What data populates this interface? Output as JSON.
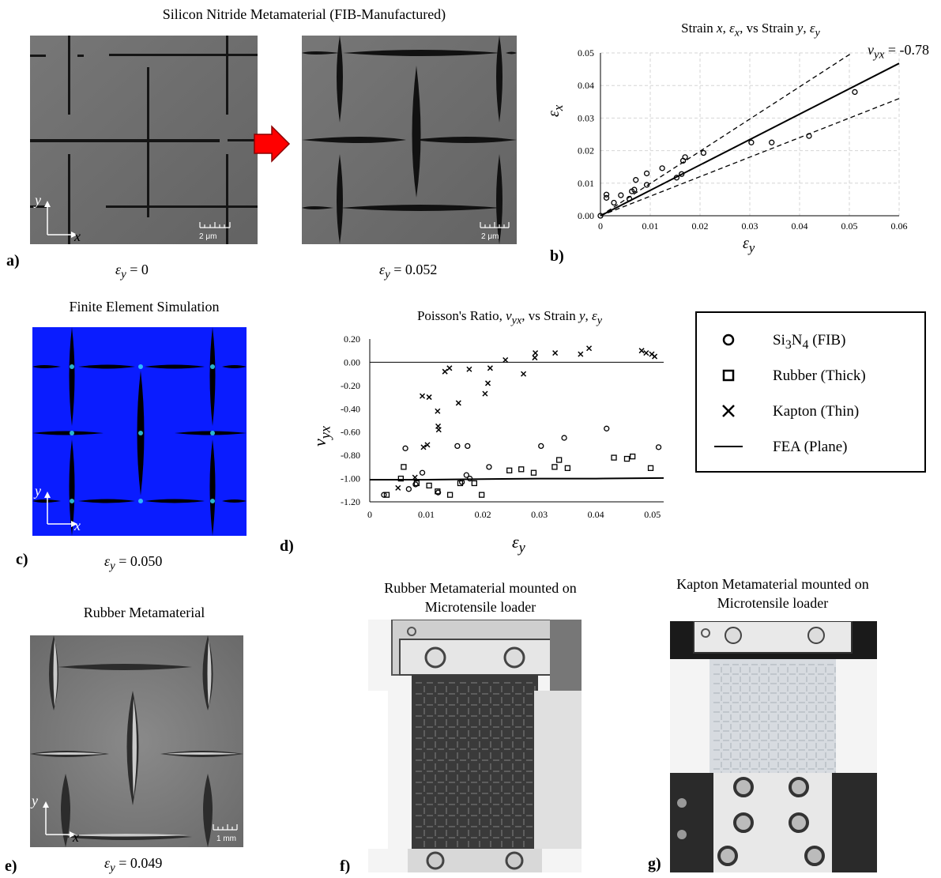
{
  "panel_a": {
    "title": "Silicon Nitride Metamaterial (FIB-Manufactured)",
    "label": "a)",
    "left_caption_var": "ε",
    "left_caption_sub": "y",
    "left_caption_val": " = 0",
    "right_caption_var": "ε",
    "right_caption_sub": "y",
    "right_caption_val": " = 0.052",
    "scale_left": "2 μm",
    "scale_right": "2 μm",
    "axis_y": "y",
    "axis_x": "x",
    "colors": {
      "sem_gray": "#6f6f6f",
      "arrow_red": "#ff0000"
    }
  },
  "panel_b": {
    "label": "b)",
    "title_prefix": "Strain ",
    "title_x": "x",
    "title_mid": ", ",
    "title_ex": "ε",
    "title_ex_sub": "x",
    "title_vs": ", vs Strain ",
    "title_y": "y",
    "title_comma": ", ",
    "title_ey": "ε",
    "title_ey_sub": "y",
    "annot_nu": "ν",
    "annot_sub": "yx",
    "annot_val": " = -0.78",
    "ylabel": "ε",
    "ylabel_sub": "x",
    "xlabel": "ε",
    "xlabel_sub": "y"
  },
  "panel_c": {
    "title": "Finite Element Simulation",
    "label": "c)",
    "caption_var": "ε",
    "caption_sub": "y",
    "caption_val": " = 0.050",
    "axis_y": "y",
    "axis_x": "x",
    "colors": {
      "field_blue": "#0a1cff",
      "void_black": "#000000"
    }
  },
  "panel_d": {
    "label": "d)",
    "title_prefix": "Poisson's Ratio, ",
    "title_nu": "ν",
    "title_nu_sub": "yx",
    "title_vs": ", vs Strain ",
    "title_y": "y",
    "title_comma": ", ",
    "title_ey": "ε",
    "title_ey_sub": "y",
    "ylabel": "ν",
    "ylabel_sub": "yx",
    "xlabel": "ε",
    "xlabel_sub": "y"
  },
  "legend": {
    "items": [
      {
        "symbol": "circle",
        "label_main": "Si",
        "label_sub1": "3",
        "label_mid": "N",
        "label_sub2": "4",
        "label_rest": " (FIB)"
      },
      {
        "symbol": "square",
        "label_main": "Rubber (Thick)"
      },
      {
        "symbol": "cross",
        "label_main": "Kapton (Thin)"
      },
      {
        "symbol": "line",
        "label_main": "FEA (Plane)"
      }
    ]
  },
  "panel_e": {
    "title": "Rubber Metamaterial",
    "label": "e)",
    "caption_var": "ε",
    "caption_sub": "y",
    "caption_val": " = 0.049",
    "scale": "1 mm",
    "axis_y": "y",
    "axis_x": "x"
  },
  "panel_f": {
    "title_line1": "Rubber Metamaterial mounted on",
    "title_line2": "Microtensile loader",
    "label": "f)"
  },
  "panel_g": {
    "title_line1": "Kapton Metamaterial mounted on",
    "title_line2": "Microtensile loader",
    "label": "g)"
  },
  "chart_data": [
    {
      "id": "b",
      "type": "scatter",
      "title": "Strain x, εx, vs Strain y, εy",
      "xlabel": "εy",
      "ylabel": "εx",
      "xlim": [
        0,
        0.06
      ],
      "ylim": [
        0,
        0.05
      ],
      "xticks": [
        "0",
        "0.01",
        "0.02",
        "0.03",
        "0.04",
        "0.05",
        "0.06"
      ],
      "yticks": [
        "0.00",
        "0.01",
        "0.02",
        "0.03",
        "0.04",
        "0.05"
      ],
      "grid": true,
      "series": [
        {
          "marker": "circle",
          "points": [
            [
              0.0,
              0.0
            ],
            [
              0.0012,
              0.0055
            ],
            [
              0.0012,
              0.0065
            ],
            [
              0.0027,
              0.004
            ],
            [
              0.0041,
              0.0063
            ],
            [
              0.0058,
              0.0052
            ],
            [
              0.0063,
              0.0075
            ],
            [
              0.0068,
              0.008
            ],
            [
              0.0071,
              0.011
            ],
            [
              0.0093,
              0.0095
            ],
            [
              0.0093,
              0.013
            ],
            [
              0.0124,
              0.0146
            ],
            [
              0.0153,
              0.0117
            ],
            [
              0.0163,
              0.0128
            ],
            [
              0.0166,
              0.0169
            ],
            [
              0.017,
              0.018
            ],
            [
              0.0207,
              0.0193
            ],
            [
              0.0303,
              0.0225
            ],
            [
              0.0344,
              0.0225
            ],
            [
              0.0419,
              0.0245
            ],
            [
              0.0511,
              0.038
            ]
          ]
        }
      ],
      "fit_lines": [
        {
          "style": "solid",
          "slope": 0.78
        },
        {
          "style": "dashed",
          "slope": 0.6
        },
        {
          "style": "dashed",
          "slope": 0.99
        }
      ],
      "annotation": "νyx = -0.78"
    },
    {
      "id": "d",
      "type": "scatter",
      "title": "Poisson's Ratio, νyx, vs Strain y, εy",
      "xlabel": "εy",
      "ylabel": "νyx",
      "xlim": [
        0,
        0.052
      ],
      "ylim": [
        -1.2,
        0.2
      ],
      "xticks": [
        "0",
        "0.01",
        "0.02",
        "0.03",
        "0.04",
        "0.05"
      ],
      "yticks": [
        "0.20",
        "0.00",
        "-0.20",
        "-0.40",
        "-0.60",
        "-0.80",
        "-1.00",
        "-1.20"
      ],
      "grid": false,
      "series": [
        {
          "name": "Si3N4 (FIB)",
          "marker": "circle",
          "points": [
            [
              0.0025,
              -1.14
            ],
            [
              0.0063,
              -0.74
            ],
            [
              0.0069,
              -1.09
            ],
            [
              0.0081,
              -1.05
            ],
            [
              0.0093,
              -0.95
            ],
            [
              0.0121,
              -1.12
            ],
            [
              0.0155,
              -0.72
            ],
            [
              0.0163,
              -1.03
            ],
            [
              0.0171,
              -0.97
            ],
            [
              0.0173,
              -0.72
            ],
            [
              0.0177,
              -1.0
            ],
            [
              0.0211,
              -0.9
            ],
            [
              0.0303,
              -0.72
            ],
            [
              0.0344,
              -0.65
            ],
            [
              0.0419,
              -0.57
            ],
            [
              0.0511,
              -0.73
            ]
          ]
        },
        {
          "name": "Rubber (Thick)",
          "marker": "square",
          "points": [
            [
              0.003,
              -1.14
            ],
            [
              0.0055,
              -1.0
            ],
            [
              0.006,
              -0.9
            ],
            [
              0.0083,
              -1.04
            ],
            [
              0.0105,
              -1.06
            ],
            [
              0.012,
              -1.11
            ],
            [
              0.0142,
              -1.14
            ],
            [
              0.016,
              -1.04
            ],
            [
              0.0185,
              -1.04
            ],
            [
              0.0198,
              -1.14
            ],
            [
              0.0247,
              -0.93
            ],
            [
              0.0268,
              -0.92
            ],
            [
              0.029,
              -0.95
            ],
            [
              0.0327,
              -0.9
            ],
            [
              0.0335,
              -0.84
            ],
            [
              0.035,
              -0.91
            ],
            [
              0.0432,
              -0.82
            ],
            [
              0.0455,
              -0.83
            ],
            [
              0.0465,
              -0.81
            ],
            [
              0.0497,
              -0.91
            ]
          ]
        },
        {
          "name": "Kapton (Thin)",
          "marker": "cross",
          "points": [
            [
              0.005,
              -1.08
            ],
            [
              0.008,
              -0.99
            ],
            [
              0.0093,
              -0.29
            ],
            [
              0.0095,
              -0.73
            ],
            [
              0.0105,
              -0.3
            ],
            [
              0.0102,
              -0.71
            ],
            [
              0.012,
              -0.42
            ],
            [
              0.0121,
              -0.55
            ],
            [
              0.0122,
              -0.58
            ],
            [
              0.0133,
              -0.08
            ],
            [
              0.0141,
              -0.05
            ],
            [
              0.0157,
              -0.35
            ],
            [
              0.0176,
              -0.06
            ],
            [
              0.0204,
              -0.27
            ],
            [
              0.0209,
              -0.18
            ],
            [
              0.0213,
              -0.05
            ],
            [
              0.024,
              0.02
            ],
            [
              0.0272,
              -0.1
            ],
            [
              0.0292,
              0.04
            ],
            [
              0.0293,
              0.08
            ],
            [
              0.0328,
              0.08
            ],
            [
              0.0373,
              0.07
            ],
            [
              0.0388,
              0.12
            ],
            [
              0.0481,
              0.1
            ],
            [
              0.0489,
              0.08
            ],
            [
              0.0499,
              0.07
            ],
            [
              0.0504,
              0.05
            ]
          ]
        },
        {
          "name": "FEA (Plane)",
          "marker": "line",
          "points": [
            [
              0.0,
              -1.01
            ],
            [
              0.01,
              -1.01
            ],
            [
              0.02,
              -1.005
            ],
            [
              0.03,
              -1.0
            ],
            [
              0.04,
              -1.0
            ],
            [
              0.052,
              -0.995
            ]
          ]
        }
      ],
      "ref_line_y": 0.0
    }
  ]
}
